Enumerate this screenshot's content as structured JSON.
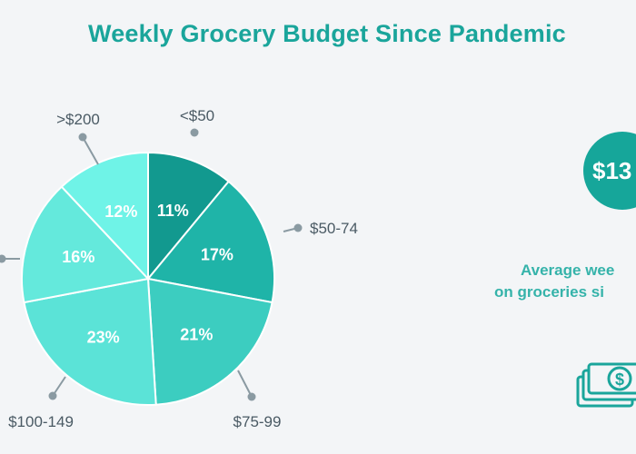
{
  "chart_data": {
    "type": "pie",
    "title": "Weekly Grocery Budget Since Pandemic",
    "slices": [
      {
        "label": "<$50",
        "value": 11,
        "display": "11%",
        "color": "#12998f"
      },
      {
        "label": "$50-74",
        "value": 17,
        "display": "17%",
        "color": "#1fb4a8"
      },
      {
        "label": "$75-99",
        "value": 21,
        "display": "21%",
        "color": "#3ccdc0"
      },
      {
        "label": "$100-149",
        "value": 23,
        "display": "23%",
        "color": "#5be3d7"
      },
      {
        "label": "",
        "value": 16,
        "display": "16%",
        "color": "#64e9dc"
      },
      {
        "label": ">$200",
        "value": 12,
        "display": "12%",
        "color": "#6ff3e7"
      }
    ]
  },
  "stat": {
    "value": "$13",
    "caption_line1": "Average wee",
    "caption_line2": "on groceries si"
  },
  "icons": {
    "money": "money-stack-icon"
  },
  "colors": {
    "title": "#1aa59b",
    "leader": "#8a9aa2",
    "label": "#4a5a64"
  }
}
